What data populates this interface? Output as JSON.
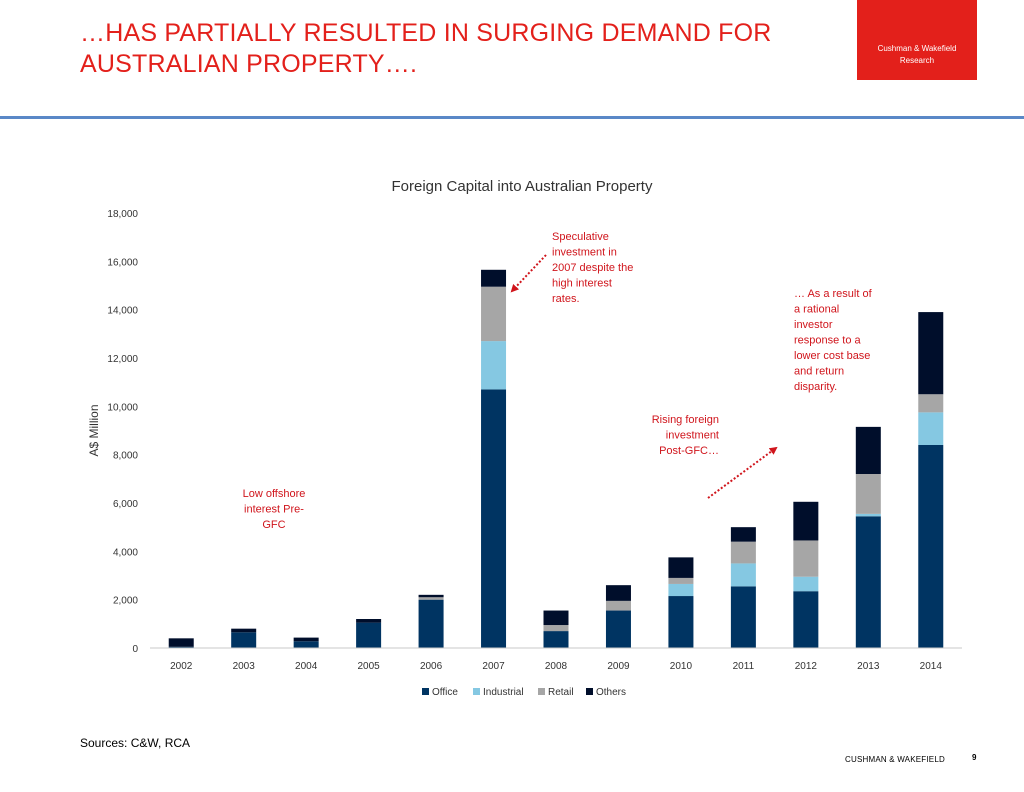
{
  "slide": {
    "title_line1": "…HAS PARTIALLY RESULTED IN SURGING DEMAND FOR",
    "title_line2": "AUSTRALIAN PROPERTY….",
    "brand_line1": "Cushman  & Wakefield",
    "brand_line2": "Research",
    "sources": "Sources: C&W, RCA",
    "footer_brand": "CUSHMAN & WAKEFIELD",
    "page_number": "9",
    "accent_color": "#e3201b",
    "rule_color": "#5a88c7"
  },
  "chart_data": {
    "type": "bar",
    "stacked": true,
    "title": "Foreign Capital into Australian Property",
    "ylabel": "A$ Million",
    "xlabel": "",
    "ylim": [
      0,
      18000
    ],
    "yticks": [
      0,
      2000,
      4000,
      6000,
      8000,
      10000,
      12000,
      14000,
      16000,
      18000
    ],
    "ytick_labels": [
      "0",
      "2,000",
      "4,000",
      "6,000",
      "8,000",
      "10,000",
      "12,000",
      "14,000",
      "16,000",
      "18,000"
    ],
    "grid": false,
    "legend_position": "bottom",
    "categories": [
      "2002",
      "2003",
      "2004",
      "2005",
      "2006",
      "2007",
      "2008",
      "2009",
      "2010",
      "2011",
      "2012",
      "2013",
      "2014"
    ],
    "series": [
      {
        "name": "Office",
        "color": "#003462",
        "values": [
          50,
          650,
          280,
          1050,
          2000,
          10700,
          700,
          1550,
          2150,
          2550,
          2350,
          5450,
          8400
        ]
      },
      {
        "name": "Industrial",
        "color": "#85c8e2",
        "values": [
          0,
          0,
          0,
          0,
          0,
          2000,
          0,
          0,
          500,
          950,
          600,
          100,
          1350
        ]
      },
      {
        "name": "Retail",
        "color": "#a6a6a6",
        "values": [
          0,
          0,
          0,
          0,
          100,
          2250,
          250,
          400,
          250,
          900,
          1500,
          1650,
          750
        ]
      },
      {
        "name": "Others",
        "color": "#000e2b",
        "values": [
          350,
          150,
          150,
          150,
          100,
          700,
          600,
          650,
          850,
          600,
          1600,
          1950,
          3400
        ]
      }
    ],
    "annotations": [
      {
        "id": "pre-gfc",
        "lines": [
          "Low offshore",
          "interest Pre-",
          "GFC"
        ]
      },
      {
        "id": "speculative",
        "lines": [
          "Speculative",
          "investment in",
          "2007 despite the",
          "high interest",
          "rates."
        ]
      },
      {
        "id": "post-gfc",
        "lines": [
          "Rising foreign",
          "investment",
          "Post-GFC…"
        ]
      },
      {
        "id": "rational",
        "lines": [
          "… As a result of",
          "a rational",
          "investor",
          "response to a",
          "lower cost base",
          "and return",
          "disparity."
        ]
      }
    ],
    "annotation_color": "#d0151c"
  }
}
